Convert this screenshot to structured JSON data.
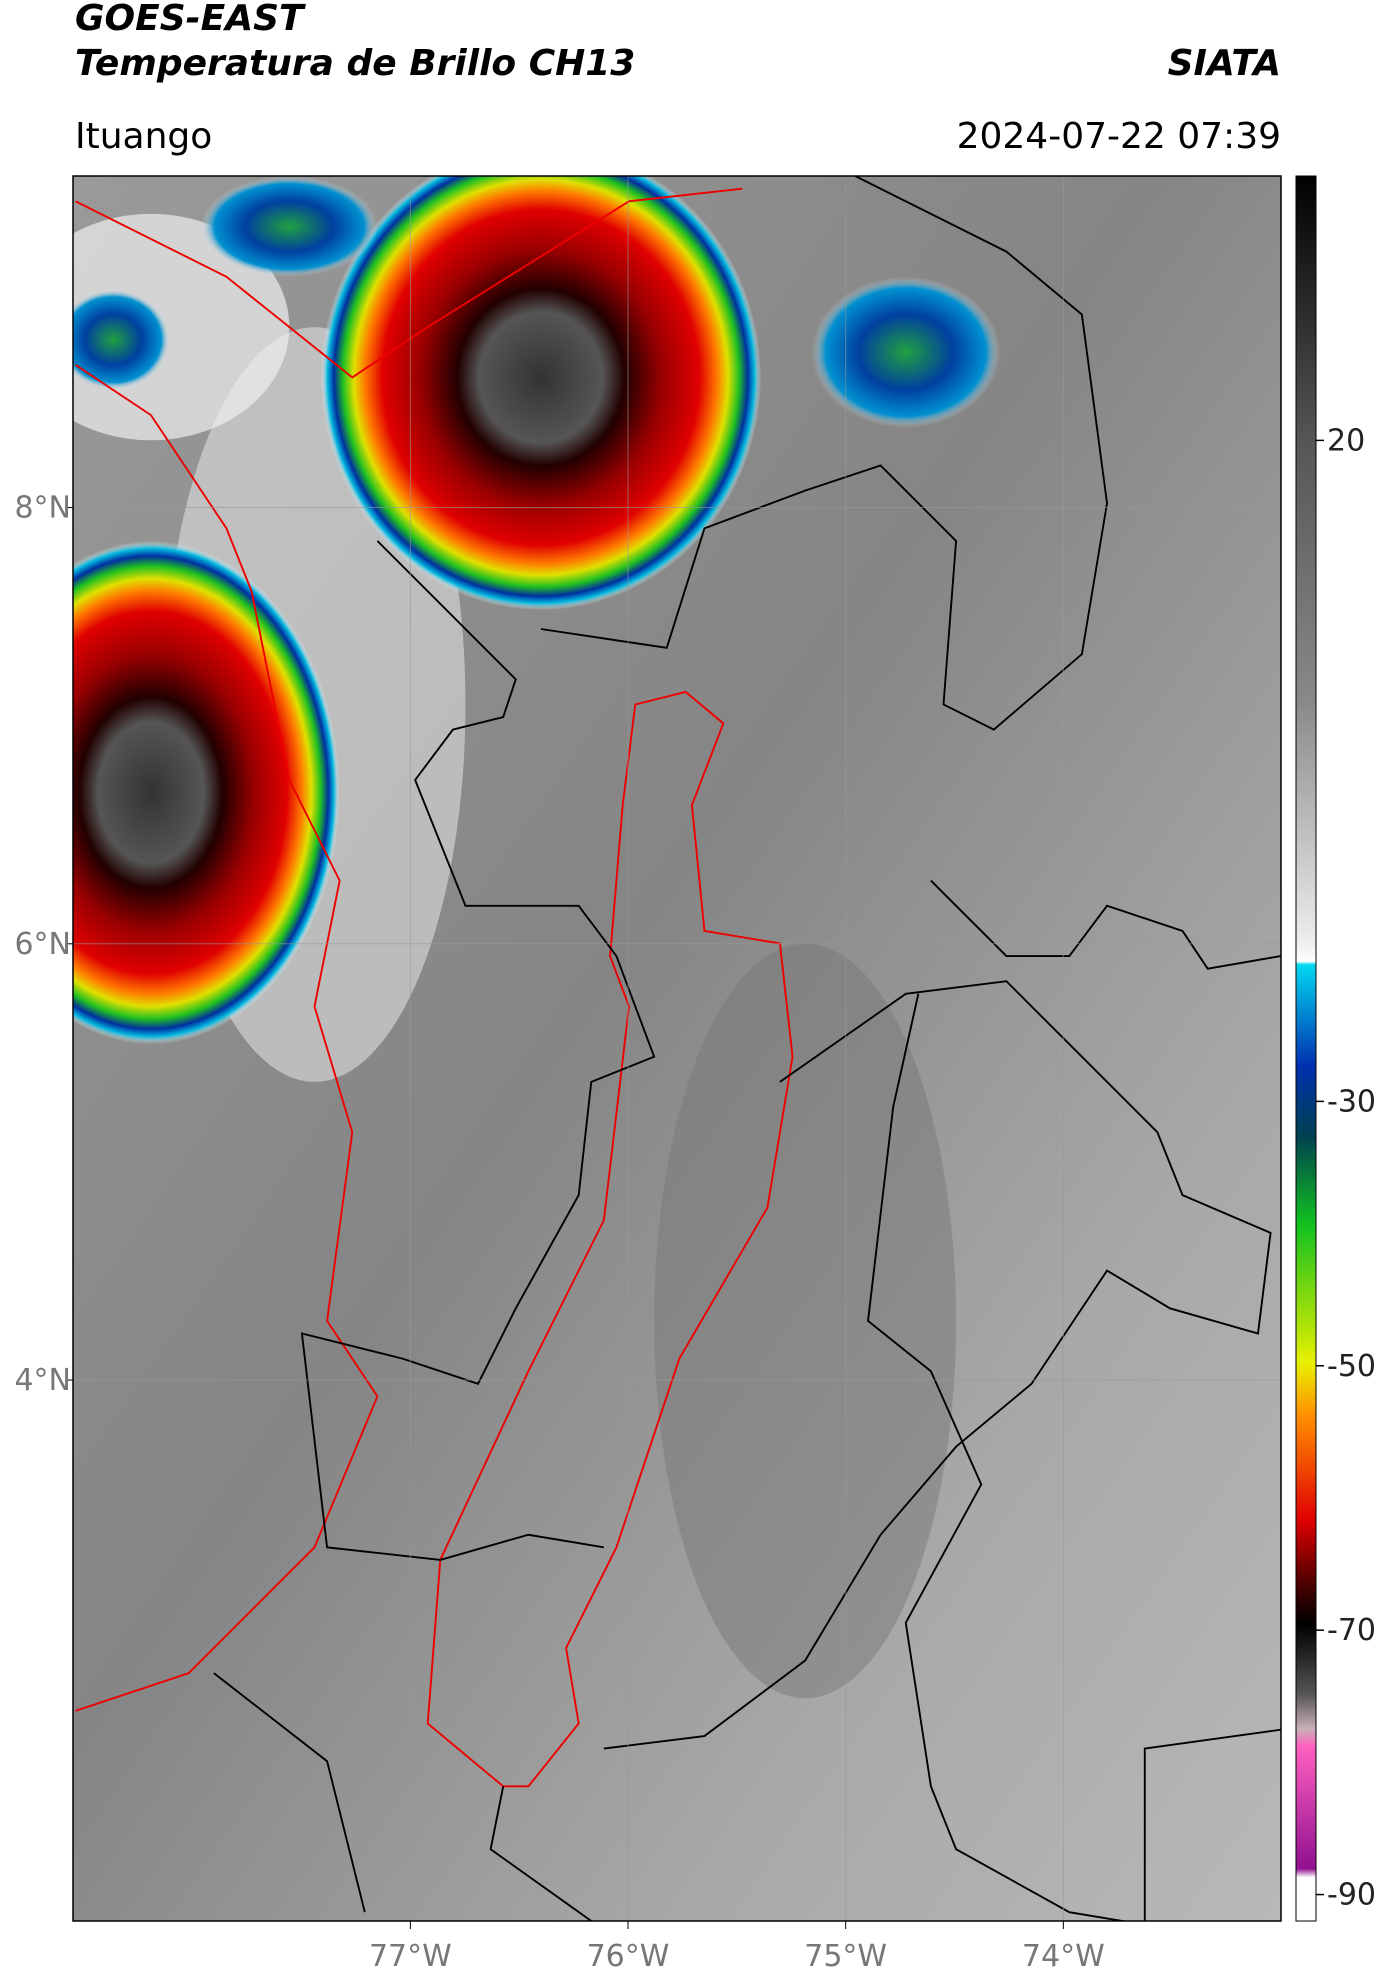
{
  "header": {
    "satellite": "GOES-EAST",
    "product": "Temperatura de Brillo CH13",
    "source": "SIATA",
    "location": "Ituango",
    "timestamp": "2024-07-22 07:39"
  },
  "map": {
    "lonlim": [
      -78.55,
      -73.0
    ],
    "latlim": [
      1.52,
      9.52
    ],
    "lonticks": [
      {
        "value": -77,
        "label": "77°W"
      },
      {
        "value": -76,
        "label": "76°W"
      },
      {
        "value": -75,
        "label": "75°W"
      },
      {
        "value": -74,
        "label": "74°W"
      }
    ],
    "latticks": [
      {
        "value": 8,
        "label": "8°N"
      },
      {
        "value": 6,
        "label": "6°N"
      },
      {
        "value": 4,
        "label": "4°N"
      }
    ],
    "grid": true
  },
  "colorbar": {
    "lim": [
      -92,
      40
    ],
    "ticks": [
      20,
      -30,
      -50,
      -70,
      -90
    ]
  }
}
